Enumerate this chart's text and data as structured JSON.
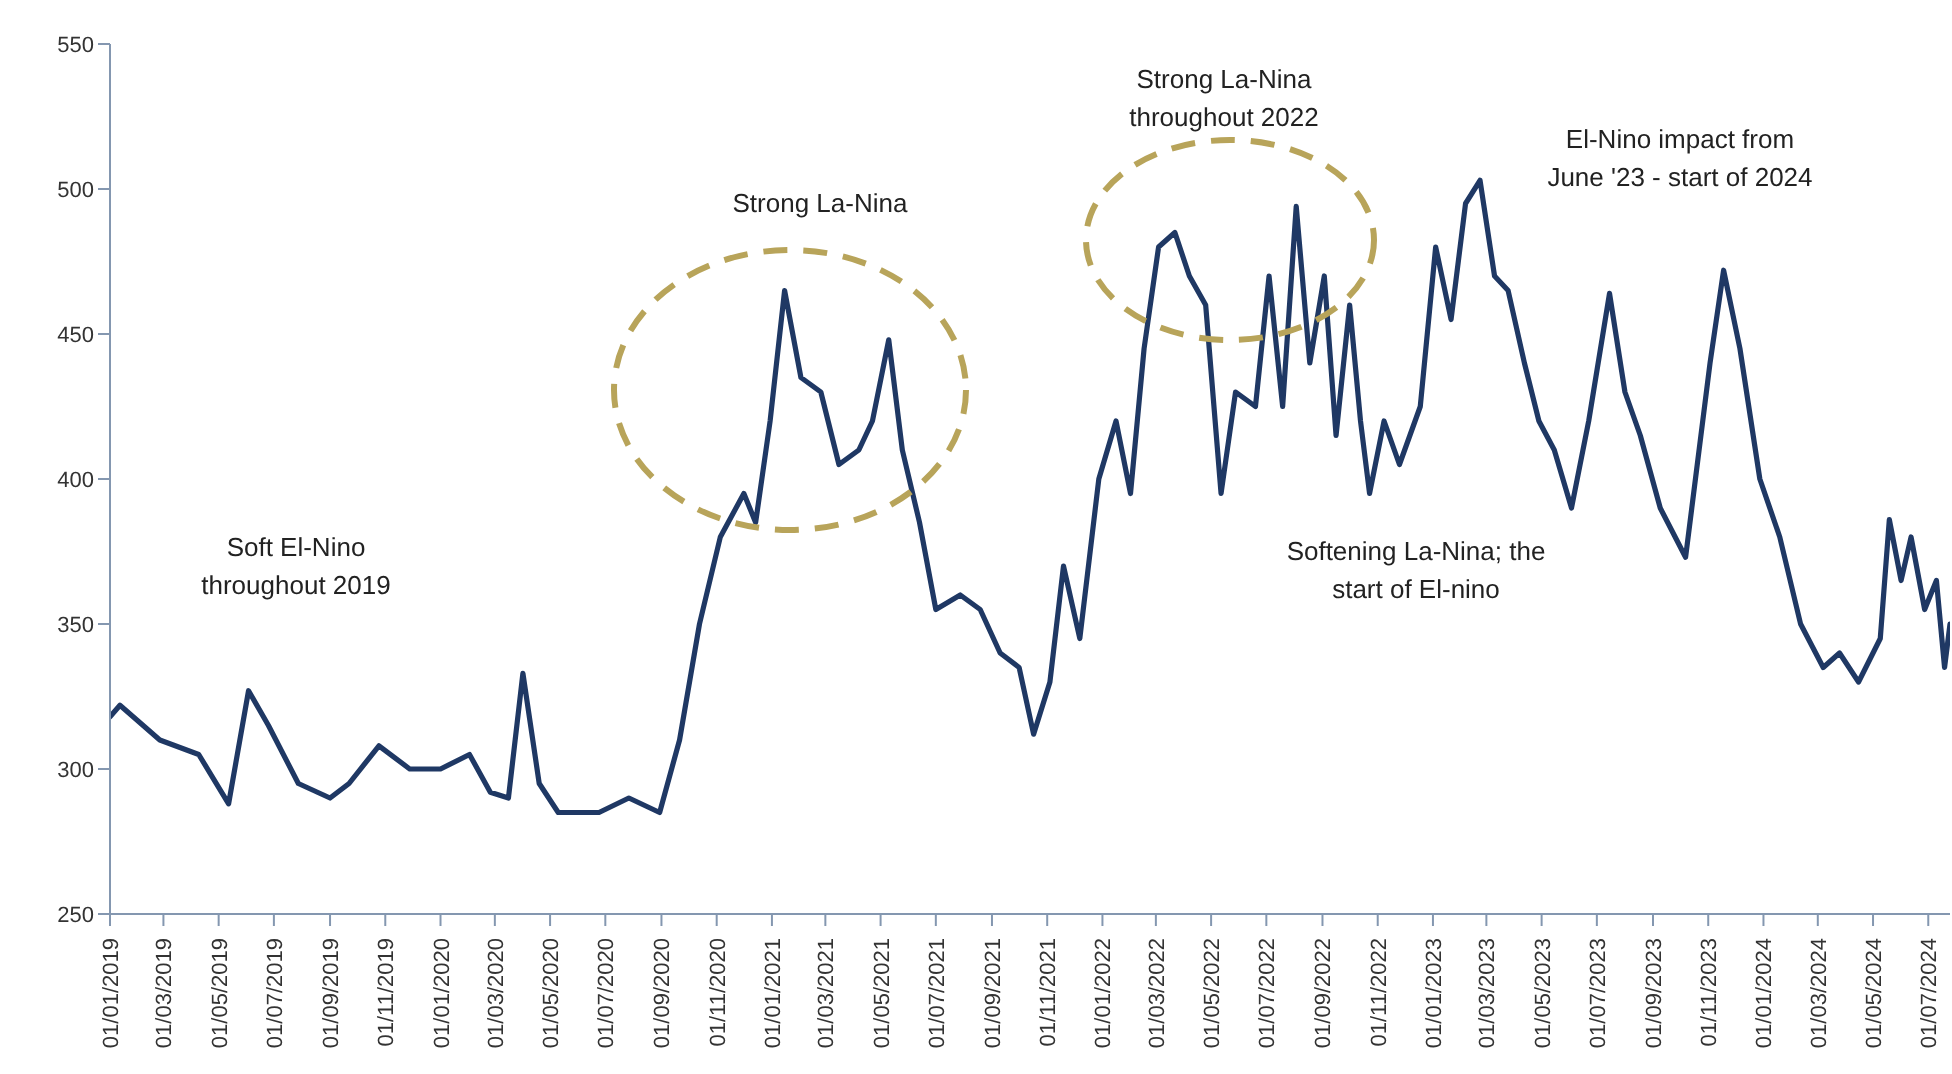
{
  "chart_data": {
    "type": "line",
    "x": [
      "2019-01-01",
      "2019-01-12",
      "2019-02-25",
      "2019-04-09",
      "2019-05-12",
      "2019-06-03",
      "2019-06-25",
      "2019-07-28",
      "2019-09-01",
      "2019-09-22",
      "2019-10-25",
      "2019-11-28",
      "2020-01-01",
      "2020-02-02",
      "2020-02-25",
      "2020-03-16",
      "2020-04-01",
      "2020-04-19",
      "2020-05-10",
      "2020-06-24",
      "2020-07-27",
      "2020-08-30",
      "2020-09-21",
      "2020-10-13",
      "2020-11-05",
      "2020-12-01",
      "2020-12-14",
      "2020-12-30",
      "2021-01-15",
      "2021-02-02",
      "2021-02-24",
      "2021-03-16",
      "2021-04-07",
      "2021-04-22",
      "2021-05-10",
      "2021-05-25",
      "2021-06-13",
      "2021-07-01",
      "2021-07-28",
      "2021-08-19",
      "2021-09-10",
      "2021-10-01",
      "2021-10-17",
      "2021-11-04",
      "2021-11-19",
      "2021-12-07",
      "2021-12-28",
      "2022-01-16",
      "2022-02-01",
      "2022-02-16",
      "2022-03-04",
      "2022-03-22",
      "2022-04-07",
      "2022-04-25",
      "2022-05-12",
      "2022-05-28",
      "2022-06-19",
      "2022-07-04",
      "2022-07-19",
      "2022-08-03",
      "2022-08-18",
      "2022-09-03",
      "2022-09-16",
      "2022-10-01",
      "2022-10-13",
      "2022-10-23",
      "2022-11-08",
      "2022-11-25",
      "2022-12-18",
      "2023-01-04",
      "2023-01-21",
      "2023-02-06",
      "2023-02-22",
      "2023-03-10",
      "2023-03-25",
      "2023-04-12",
      "2023-04-28",
      "2023-05-15",
      "2023-06-03",
      "2023-06-22",
      "2023-07-15",
      "2023-08-01",
      "2023-08-18",
      "2023-09-09",
      "2023-10-07",
      "2023-11-03",
      "2023-11-18",
      "2023-12-06",
      "2023-12-28",
      "2024-01-19",
      "2024-02-11",
      "2024-03-07",
      "2024-03-25",
      "2024-04-15",
      "2024-05-09",
      "2024-05-19",
      "2024-06-01",
      "2024-06-12",
      "2024-06-27",
      "2024-07-10",
      "2024-07-19",
      "2024-07-25"
    ],
    "series": [
      {
        "color": "#1f3864",
        "values": [
          318,
          322,
          310,
          305,
          288,
          327,
          315,
          295,
          290,
          295,
          308,
          300,
          300,
          305,
          292,
          290,
          333,
          295,
          285,
          285,
          290,
          285,
          310,
          350,
          380,
          395,
          385,
          420,
          465,
          435,
          430,
          405,
          410,
          420,
          448,
          410,
          385,
          355,
          360,
          355,
          340,
          335,
          312,
          330,
          370,
          345,
          400,
          420,
          395,
          445,
          480,
          485,
          470,
          460,
          395,
          430,
          425,
          470,
          425,
          494,
          440,
          470,
          415,
          460,
          420,
          395,
          420,
          405,
          425,
          480,
          455,
          495,
          503,
          470,
          465,
          440,
          420,
          410,
          390,
          420,
          464,
          430,
          415,
          390,
          373,
          440,
          472,
          445,
          400,
          380,
          350,
          335,
          340,
          330,
          345,
          386,
          365,
          380,
          355,
          365,
          335,
          350
        ]
      }
    ],
    "xlim": [
      "2019-01-01",
      "2024-07-25"
    ],
    "xticks": [
      {
        "value": "2019-01-01",
        "label": "01/01/2019"
      },
      {
        "value": "2019-03-01",
        "label": "01/03/2019"
      },
      {
        "value": "2019-05-01",
        "label": "01/05/2019"
      },
      {
        "value": "2019-07-01",
        "label": "01/07/2019"
      },
      {
        "value": "2019-09-01",
        "label": "01/09/2019"
      },
      {
        "value": "2019-11-01",
        "label": "01/11/2019"
      },
      {
        "value": "2020-01-01",
        "label": "01/01/2020"
      },
      {
        "value": "2020-03-01",
        "label": "01/03/2020"
      },
      {
        "value": "2020-05-01",
        "label": "01/05/2020"
      },
      {
        "value": "2020-07-01",
        "label": "01/07/2020"
      },
      {
        "value": "2020-09-01",
        "label": "01/09/2020"
      },
      {
        "value": "2020-11-01",
        "label": "01/11/2020"
      },
      {
        "value": "2021-01-01",
        "label": "01/01/2021"
      },
      {
        "value": "2021-03-01",
        "label": "01/03/2021"
      },
      {
        "value": "2021-05-01",
        "label": "01/05/2021"
      },
      {
        "value": "2021-07-01",
        "label": "01/07/2021"
      },
      {
        "value": "2021-09-01",
        "label": "01/09/2021"
      },
      {
        "value": "2021-11-01",
        "label": "01/11/2021"
      },
      {
        "value": "2022-01-01",
        "label": "01/01/2022"
      },
      {
        "value": "2022-03-01",
        "label": "01/03/2022"
      },
      {
        "value": "2022-05-01",
        "label": "01/05/2022"
      },
      {
        "value": "2022-07-01",
        "label": "01/07/2022"
      },
      {
        "value": "2022-09-01",
        "label": "01/09/2022"
      },
      {
        "value": "2022-11-01",
        "label": "01/11/2022"
      },
      {
        "value": "2023-01-01",
        "label": "01/01/2023"
      },
      {
        "value": "2023-03-01",
        "label": "01/03/2023"
      },
      {
        "value": "2023-05-01",
        "label": "01/05/2023"
      },
      {
        "value": "2023-07-01",
        "label": "01/07/2023"
      },
      {
        "value": "2023-09-01",
        "label": "01/09/2023"
      },
      {
        "value": "2023-11-01",
        "label": "01/11/2023"
      },
      {
        "value": "2024-01-01",
        "label": "01/01/2024"
      },
      {
        "value": "2024-03-01",
        "label": "01/03/2024"
      },
      {
        "value": "2024-05-01",
        "label": "01/05/2024"
      },
      {
        "value": "2024-07-01",
        "label": "01/07/2024"
      }
    ],
    "ylim": [
      250,
      550
    ],
    "yticks": [
      250,
      300,
      350,
      400,
      450,
      500,
      550
    ],
    "grid": false,
    "marker": "none",
    "line_style": "solid",
    "annotations": [
      "Soft El-Nino throughout 2019",
      "Strong La-Nina",
      "Strong La-Nina throughout 2022",
      "El-Nino impact from June '23 - start of 2024",
      "Softening La-Nina; the start of El-nino"
    ]
  }
}
